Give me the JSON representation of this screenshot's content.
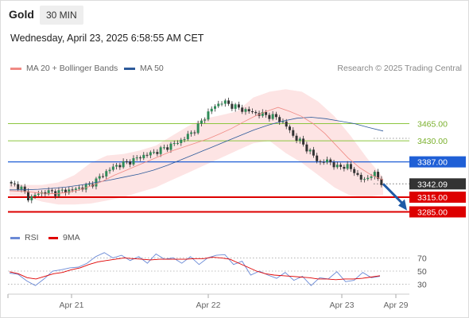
{
  "header": {
    "symbol": "Gold",
    "timeframe": "30 MIN",
    "datetime": "Wednesday, April 23, 2025 6:58:55 AM CET"
  },
  "legend": {
    "items": [
      {
        "label": "MA 20 + Bollinger Bands",
        "color": "#f08a84"
      },
      {
        "label": "MA 50",
        "color": "#2d5a9a"
      }
    ],
    "credit": "Research © 2025 Trading Central"
  },
  "chart_data": [
    {
      "type": "candlestick",
      "x_ticks": [
        "Apr 21",
        "Apr 22",
        "Apr 23",
        "Apr 29"
      ],
      "ylim": [
        3255,
        3555
      ],
      "levels": [
        {
          "value": 3465.0,
          "label": "3465.00",
          "kind": "target",
          "color": "#8cc63f"
        },
        {
          "value": 3430.0,
          "label": "3430.00",
          "kind": "target",
          "color": "#8cc63f"
        },
        {
          "value": 3387.0,
          "label": "3387.00",
          "kind": "pivot",
          "color": "#1f5fd6"
        },
        {
          "value": 3342.09,
          "label": "3342.09",
          "kind": "last",
          "color": "#333333"
        },
        {
          "value": 3315.0,
          "label": "3315.00",
          "kind": "support",
          "color": "#dd0000"
        },
        {
          "value": 3285.0,
          "label": "3285.00",
          "kind": "support",
          "color": "#dd0000"
        }
      ],
      "close_path": [
        3340,
        3337,
        3312,
        3322,
        3326,
        3324,
        3328,
        3330,
        3335,
        3340,
        3355,
        3370,
        3380,
        3385,
        3392,
        3400,
        3405,
        3412,
        3420,
        3428,
        3440,
        3455,
        3480,
        3500,
        3510,
        3502,
        3495,
        3490,
        3485,
        3482,
        3478,
        3465,
        3440,
        3425,
        3405,
        3385,
        3390,
        3375,
        3380,
        3365,
        3347,
        3365,
        3345
      ],
      "ma20": [
        3328,
        3327,
        3325,
        3323,
        3322,
        3325,
        3330,
        3338,
        3348,
        3360,
        3370,
        3380,
        3390,
        3400,
        3410,
        3418,
        3426,
        3434,
        3444,
        3455,
        3468,
        3480,
        3490,
        3498,
        3490,
        3480,
        3465,
        3445,
        3420,
        3395,
        3375,
        3360,
        3350
      ],
      "ma50": [
        3330,
        3330,
        3331,
        3333,
        3336,
        3340,
        3345,
        3350,
        3356,
        3362,
        3370,
        3380,
        3392,
        3404,
        3416,
        3428,
        3440,
        3452,
        3462,
        3470,
        3476,
        3478,
        3475,
        3470,
        3465,
        3457,
        3450
      ],
      "bb_upper": [
        3342,
        3340,
        3340,
        3345,
        3360,
        3385,
        3400,
        3403,
        3410,
        3420,
        3440,
        3460,
        3475,
        3482,
        3490,
        3518,
        3530,
        3535,
        3530,
        3510,
        3480,
        3440,
        3395,
        3355
      ],
      "bb_lower": [
        3318,
        3316,
        3306,
        3300,
        3300,
        3302,
        3308,
        3315,
        3325,
        3335,
        3350,
        3365,
        3380,
        3395,
        3410,
        3425,
        3430,
        3405,
        3385,
        3360,
        3335,
        3318,
        3315,
        3320
      ]
    },
    {
      "type": "line",
      "ylim": [
        15,
        85
      ],
      "y_ticks": [
        70,
        50,
        30
      ],
      "series": [
        {
          "name": "RSI",
          "color": "#6b8ad6",
          "values": [
            47,
            45,
            35,
            28,
            38,
            50,
            52,
            55,
            56,
            62,
            72,
            78,
            70,
            74,
            66,
            72,
            62,
            76,
            68,
            70,
            62,
            72,
            60,
            70,
            74,
            75,
            60,
            65,
            44,
            50,
            44,
            39,
            48,
            36,
            42,
            28,
            40,
            38,
            49,
            34,
            36,
            48,
            40,
            42
          ]
        },
        {
          "name": "9MA",
          "color": "#e00000",
          "values": [
            49,
            46,
            40,
            38,
            42,
            46,
            48,
            52,
            55,
            60,
            64,
            66,
            68,
            70,
            69,
            68,
            67,
            68,
            68,
            68,
            68,
            69,
            69,
            71,
            70,
            68,
            62,
            56,
            50,
            46,
            44,
            43,
            42,
            41,
            40,
            38,
            38,
            37,
            38,
            38,
            39,
            41,
            43
          ]
        }
      ]
    }
  ]
}
